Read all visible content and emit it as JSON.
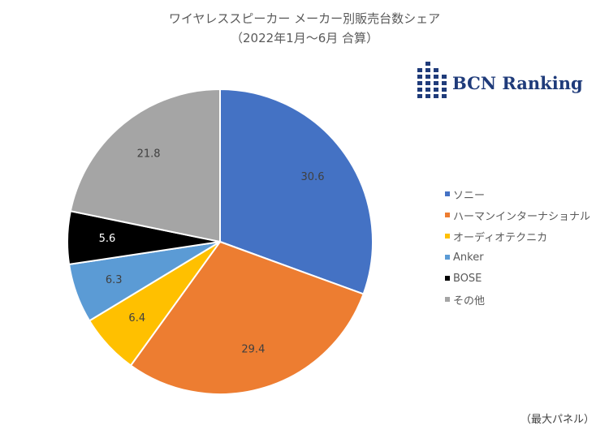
{
  "title_line1": "ワイヤレススピーカー メーカー別販売台数シェア",
  "title_line2": "（2022年1月～6月 合算）",
  "logo_text": "BCN Ranking",
  "source_note": "（最大パネル）",
  "chart_data": {
    "type": "pie",
    "title": "ワイヤレススピーカー メーカー別販売台数シェア",
    "subtitle": "（2022年1月～6月 合算）",
    "categories": [
      "ソニー",
      "ハーマンインターナショナル",
      "オーディオテクニカ",
      "Anker",
      "BOSE",
      "その他"
    ],
    "values": [
      30.6,
      29.4,
      6.4,
      6.3,
      5.6,
      21.8
    ],
    "labels": [
      "30.6",
      "29.4",
      "6.4",
      "6.3",
      "5.6",
      "21.8"
    ],
    "colors": [
      "#4472C4",
      "#ED7D31",
      "#FFC000",
      "#5B9BD5",
      "#000000",
      "#A5A5A5"
    ],
    "label_colors": [
      "#404040",
      "#404040",
      "#404040",
      "#404040",
      "#ffffff",
      "#404040"
    ],
    "legend_position": "right",
    "start": "top, clockwise"
  }
}
